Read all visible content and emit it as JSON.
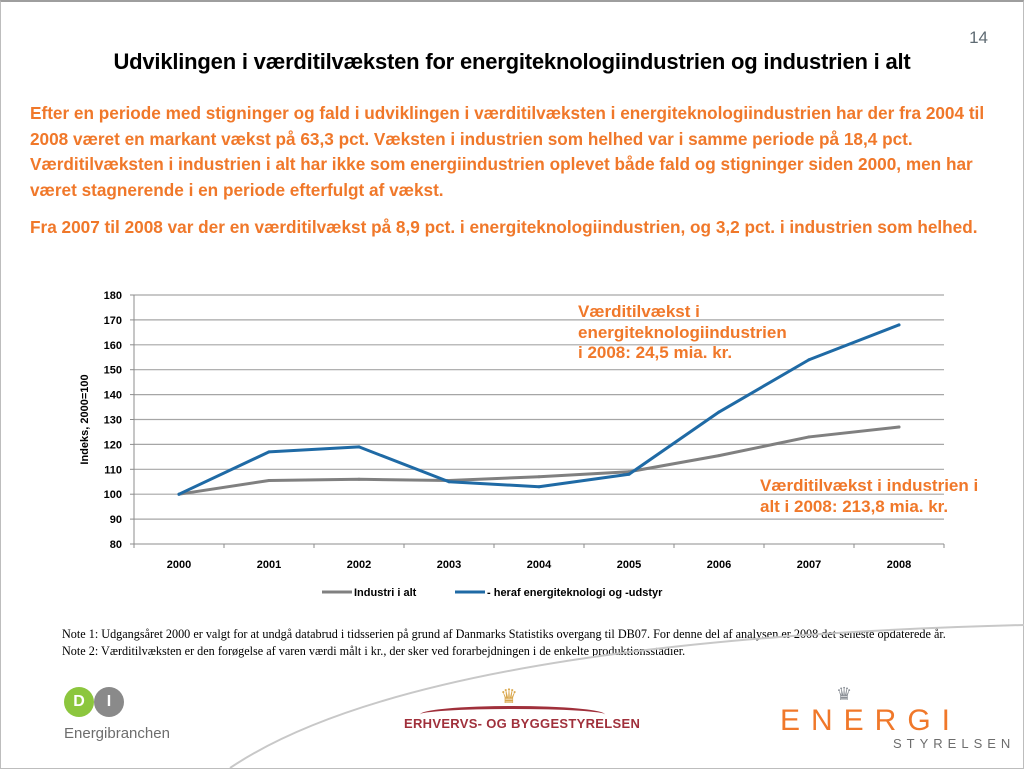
{
  "page_number": "14",
  "title": "Udviklingen i værditilvæksten for energiteknologiindustrien og industrien i alt",
  "paragraphs": [
    "Efter en periode med stigninger og fald i udviklingen i værditilvæksten i energiteknologiindustrien har der fra 2004 til 2008 været en markant vækst på 63,3 pct. Væksten i industrien som helhed var i samme periode på 18,4 pct. Værditilvæksten i industrien i alt har ikke som energiindustrien oplevet både fald og stigninger siden 2000, men har været stagnerende i en periode efterfulgt af vækst.",
    "Fra 2007 til 2008 var der en værditilvækst på 8,9 pct. i energiteknologiindustrien, og 3,2 pct. i industrien som helhed."
  ],
  "annotations": {
    "energy": [
      "Værditilvækst i",
      "energiteknologiindustrien",
      "i 2008: 24,5 mia. kr."
    ],
    "industry": [
      "Værditilvækst i industrien i",
      "alt i 2008: 213,8 mia. kr."
    ]
  },
  "notes": [
    "Note 1: Udgangsåret 2000 er valgt for at undgå databrud i tidsserien på grund af Danmarks Statistiks overgang til DB07. For denne del af analysen er 2008 det seneste opdaterede år.",
    "Note 2: Værditilvæksten er den forøgelse af varen værdi målt i kr., der sker ved forarbejdningen i de enkelte produktionsstadier."
  ],
  "logos": {
    "di": {
      "letter1": "D",
      "letter2": "I",
      "subtitle": "Energibranchen"
    },
    "ebst": {
      "text": "ERHVERVS- OG BYGGESTYRELSEN",
      "crown": "♛"
    },
    "ens": {
      "main": "ENERGI",
      "sub": "STYRELSEN",
      "crown": "♛"
    }
  },
  "colors": {
    "accent_orange": "#f0782a",
    "series_gray": "#808080",
    "series_blue": "#1f6aa5",
    "gridline": "#a6a6a6"
  },
  "chart_data": {
    "type": "line",
    "title": "",
    "xlabel": "",
    "ylabel": "Indeks, 2000=100",
    "categories": [
      "2000",
      "2001",
      "2002",
      "2003",
      "2004",
      "2005",
      "2006",
      "2007",
      "2008"
    ],
    "yticks": [
      80,
      90,
      100,
      110,
      120,
      130,
      140,
      150,
      160,
      170,
      180
    ],
    "ylim": [
      80,
      180
    ],
    "grid": true,
    "legend": "bottom",
    "series": [
      {
        "name": "Industri i alt",
        "color": "#808080",
        "values": [
          100,
          105.5,
          106,
          105.5,
          107,
          109,
          115.5,
          123,
          127
        ]
      },
      {
        "name": "- heraf energiteknologi  og -udstyr",
        "color": "#1f6aa5",
        "values": [
          100,
          117,
          119,
          105,
          103,
          108,
          133,
          154,
          168
        ]
      }
    ]
  }
}
